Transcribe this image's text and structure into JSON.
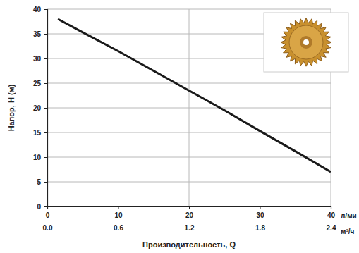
{
  "chart_data": {
    "type": "line",
    "x_label": "Производительность, Q",
    "y_label": "Напор, H (м)",
    "x_unit": "л/ми",
    "x2_unit": "м³/ч",
    "x": [
      1.5,
      5,
      10,
      15,
      20,
      25,
      30,
      35,
      40
    ],
    "series": [
      {
        "name": "H",
        "color": "#1a1a1a",
        "values": [
          38,
          35.3,
          31.5,
          27.5,
          23.5,
          19.5,
          15.3,
          11.2,
          7
        ]
      }
    ],
    "xlim": [
      0,
      40
    ],
    "xticks": [
      0,
      10,
      20,
      30,
      40
    ],
    "x2lim": [
      0,
      2.4
    ],
    "x2ticks": [
      {
        "value": 0,
        "label": "0.0"
      },
      0.6,
      1.2,
      1.8,
      2.4
    ],
    "ylim": [
      0,
      40
    ],
    "yticks": [
      0,
      5,
      10,
      15,
      20,
      25,
      30,
      35,
      40
    ],
    "grid": true
  }
}
